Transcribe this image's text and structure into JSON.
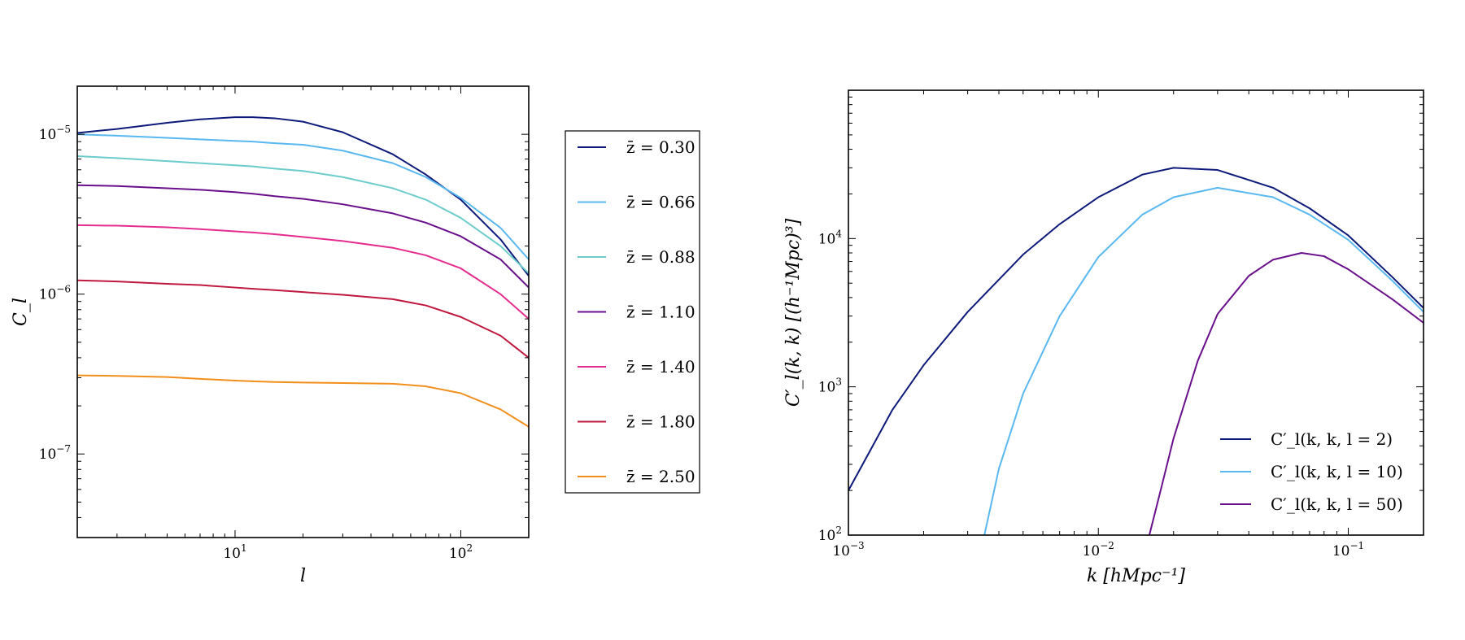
{
  "chart_data": [
    {
      "type": "line",
      "xscale": "log",
      "yscale": "log",
      "xlim": [
        2,
        200
      ],
      "ylim": [
        3e-08,
        2e-05
      ],
      "xlabel": "l",
      "ylabel": "C_l",
      "x_ticks": [
        {
          "value": 10,
          "label": "10^1"
        },
        {
          "value": 100,
          "label": "10^2"
        }
      ],
      "y_ticks": [
        {
          "value": 1e-07,
          "label": "10^-7"
        },
        {
          "value": 1e-06,
          "label": "10^-6"
        },
        {
          "value": 1e-05,
          "label": "10^-5"
        }
      ],
      "grid": false,
      "legend_placement": "outside-right",
      "x": [
        2,
        3,
        5,
        7,
        10,
        12,
        15,
        20,
        30,
        50,
        70,
        100,
        150,
        200
      ],
      "series": [
        {
          "name": "z̄ = 0.30",
          "color": "#0d1a7a",
          "values": [
            1.02e-05,
            1.08e-05,
            1.18e-05,
            1.24e-05,
            1.28e-05,
            1.28e-05,
            1.26e-05,
            1.2e-05,
            1.03e-05,
            7.5e-06,
            5.6e-06,
            3.9e-06,
            2.2e-06,
            1.3e-06
          ]
        },
        {
          "name": "z̄ = 0.66",
          "color": "#5ab8f0",
          "values": [
            1e-05,
            9.8e-06,
            9.5e-06,
            9.3e-06,
            9.1e-06,
            9e-06,
            8.8e-06,
            8.6e-06,
            7.9e-06,
            6.6e-06,
            5.4e-06,
            4e-06,
            2.6e-06,
            1.65e-06
          ]
        },
        {
          "name": "z̄ = 0.88",
          "color": "#6ccccc",
          "values": [
            7.3e-06,
            7.1e-06,
            6.8e-06,
            6.6e-06,
            6.4e-06,
            6.3e-06,
            6.1e-06,
            5.9e-06,
            5.4e-06,
            4.6e-06,
            3.9e-06,
            3e-06,
            2e-06,
            1.35e-06
          ]
        },
        {
          "name": "z̄ = 1.10",
          "color": "#6a0f8c",
          "values": [
            4.8e-06,
            4.75e-06,
            4.6e-06,
            4.5e-06,
            4.35e-06,
            4.25e-06,
            4.1e-06,
            3.95e-06,
            3.65e-06,
            3.2e-06,
            2.8e-06,
            2.3e-06,
            1.65e-06,
            1.1e-06
          ]
        },
        {
          "name": "z̄ = 1.40",
          "color": "#e52c8e",
          "values": [
            2.7e-06,
            2.68e-06,
            2.62e-06,
            2.55e-06,
            2.47e-06,
            2.43e-06,
            2.37e-06,
            2.28e-06,
            2.15e-06,
            1.95e-06,
            1.75e-06,
            1.45e-06,
            1e-06,
            7e-07
          ]
        },
        {
          "name": "z̄ = 1.80",
          "color": "#c0183e",
          "values": [
            1.22e-06,
            1.2e-06,
            1.16e-06,
            1.14e-06,
            1.1e-06,
            1.08e-06,
            1.06e-06,
            1.03e-06,
            9.9e-07,
            9.3e-07,
            8.5e-07,
            7.2e-07,
            5.5e-07,
            4e-07
          ]
        },
        {
          "name": "z̄ = 2.50",
          "color": "#f28e1c",
          "values": [
            3.1e-07,
            3.08e-07,
            3.03e-07,
            2.95e-07,
            2.88e-07,
            2.85e-07,
            2.82e-07,
            2.8e-07,
            2.78e-07,
            2.75e-07,
            2.65e-07,
            2.4e-07,
            1.9e-07,
            1.48e-07
          ]
        }
      ]
    },
    {
      "type": "line",
      "xscale": "log",
      "yscale": "log",
      "xlim": [
        0.001,
        0.2
      ],
      "ylim": [
        100,
        100000
      ],
      "xlabel": "k [hMpc⁻¹]",
      "ylabel": "C′_l(k, k) [(h⁻¹Mpc)³]",
      "x_ticks": [
        {
          "value": 0.001,
          "label": "10^-3"
        },
        {
          "value": 0.01,
          "label": "10^-2"
        },
        {
          "value": 0.1,
          "label": "10^-1"
        }
      ],
      "y_ticks": [
        {
          "value": 100,
          "label": "10^2"
        },
        {
          "value": 1000,
          "label": "10^3"
        },
        {
          "value": 10000,
          "label": "10^4"
        }
      ],
      "grid": false,
      "legend_placement": "lower-right",
      "series": [
        {
          "name": "C′_l(k, k, l = 2)",
          "color": "#0d1a7a",
          "x": [
            0.001,
            0.0015,
            0.002,
            0.003,
            0.005,
            0.007,
            0.01,
            0.015,
            0.02,
            0.03,
            0.05,
            0.07,
            0.1,
            0.15,
            0.2
          ],
          "values": [
            200,
            700,
            1400,
            3200,
            7800,
            12500,
            19000,
            27000,
            30000,
            29000,
            22000,
            16000,
            10500,
            5500,
            3400
          ]
        },
        {
          "name": "C′_l(k, k, l = 10)",
          "color": "#5ab8f0",
          "x": [
            0.0035,
            0.004,
            0.005,
            0.007,
            0.01,
            0.015,
            0.02,
            0.03,
            0.05,
            0.07,
            0.1,
            0.15,
            0.2
          ],
          "values": [
            100,
            280,
            900,
            3000,
            7500,
            14500,
            19000,
            22000,
            19000,
            14500,
            9800,
            5200,
            3200
          ]
        },
        {
          "name": "C′_l(k, k, l = 50)",
          "color": "#6a0f8c",
          "x": [
            0.016,
            0.018,
            0.02,
            0.025,
            0.03,
            0.04,
            0.05,
            0.065,
            0.08,
            0.1,
            0.15,
            0.2
          ],
          "values": [
            100,
            220,
            450,
            1500,
            3100,
            5600,
            7200,
            8000,
            7600,
            6200,
            3900,
            2700
          ]
        }
      ]
    }
  ]
}
